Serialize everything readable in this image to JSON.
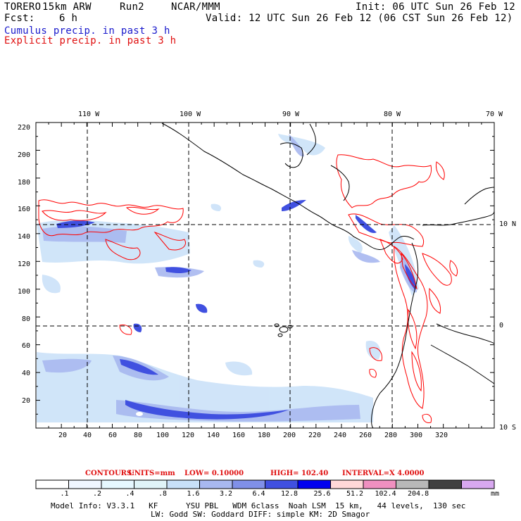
{
  "header": {
    "model": "TORERO",
    "resolution": "15km ARW",
    "run": "Run2",
    "org": "NCAR/MMM",
    "init": "Init: 06 UTC Sun 26 Feb 12",
    "fcst_label": "Fcst:",
    "fcst_value": "6 h",
    "valid": "Valid: 12 UTC Sun 26 Feb 12 (06 CST Sun 26 Feb 12)",
    "field1": "Cumulus precip. in past 3 h",
    "field2": "Explicit precip. in past 3 h"
  },
  "map": {
    "lon_labels": [
      "110 W",
      "100 W",
      "90 W",
      "80 W",
      "70 W"
    ],
    "lat_labels": [
      "10 N",
      "0",
      "10 S"
    ],
    "y_ticks": [
      "220",
      "200",
      "180",
      "160",
      "140",
      "120",
      "100",
      "80",
      "60",
      "40",
      "20"
    ],
    "x_ticks": [
      "20",
      "40",
      "60",
      "80",
      "100",
      "120",
      "140",
      "160",
      "180",
      "200",
      "220",
      "240",
      "260",
      "280",
      "300",
      "320"
    ],
    "colors": {
      "cumulus": "#3a50e0",
      "explicit": "#ff0000",
      "coast": "#000000",
      "grid": "#000000"
    }
  },
  "contours": {
    "label": "CONTOURS:",
    "units": "UNITS=mm",
    "low": "LOW= 0.10000",
    "high": "HIGH= 102.40",
    "interval": "INTERVAL=X 4.0000"
  },
  "colorbar": {
    "levels": [
      ".1",
      ".2",
      ".4",
      ".8",
      "1.6",
      "3.2",
      "6.4",
      "12.8",
      "25.6",
      "51.2",
      "102.4",
      "204.8"
    ],
    "unit": "mm",
    "colors": [
      "#ffffff",
      "#f0f6ff",
      "#e6f8ff",
      "#e0f4f8",
      "#c8e0f8",
      "#a8b8f0",
      "#8090e8",
      "#4050e0",
      "#0000f0",
      "#ffd8d8",
      "#f090c0",
      "#b8b8b8",
      "#404040",
      "#d8a8f0"
    ]
  },
  "model_info": {
    "line1": "Model Info: V3.3.1   KF      YSU PBL   WDM 6class  Noah LSM  15 km,   44 levels,  130 sec",
    "line2": "LW: Godd SW: Goddard DIFF: simple KM: 2D Smagor"
  }
}
